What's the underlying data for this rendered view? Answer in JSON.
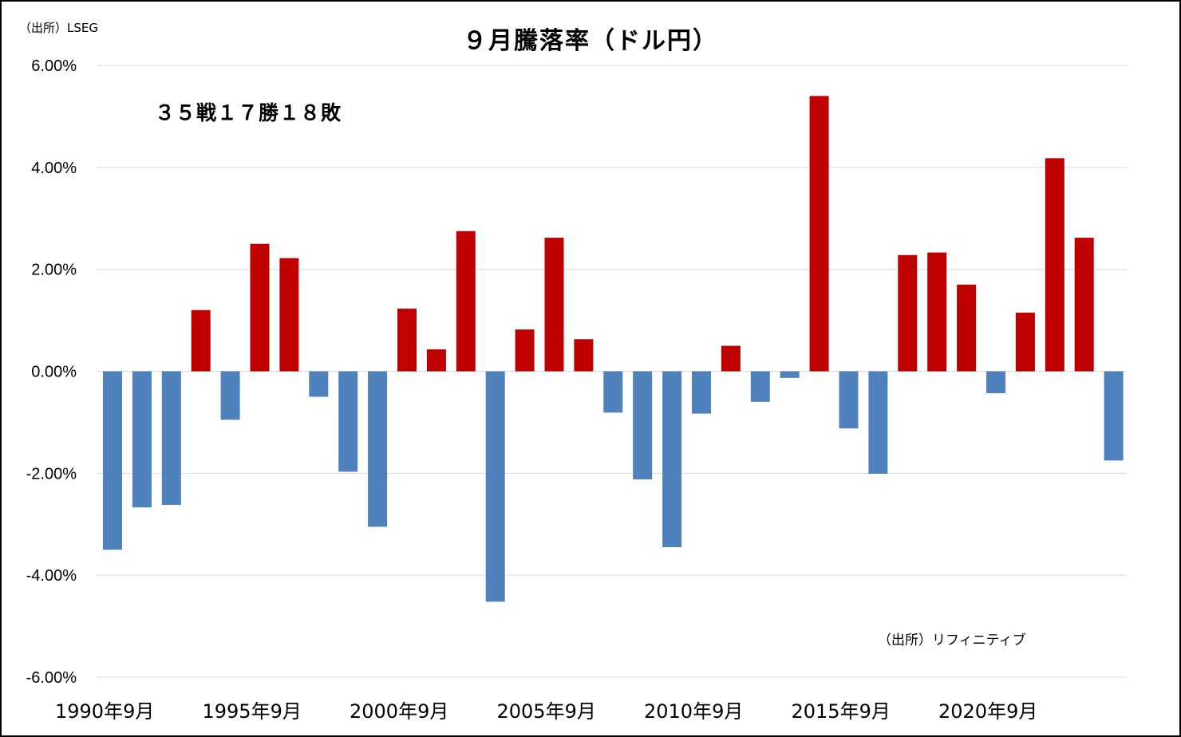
{
  "source_top": "（出所）LSEG",
  "source_bottom": "（出所）リフィニティブ",
  "record_text": "３５戦１７勝１８敗",
  "colors": {
    "positive": "#c00000",
    "negative": "#4f81bd",
    "grid": "#d9d9d9",
    "text": "#000000"
  },
  "chart_data": {
    "type": "bar",
    "title": "９月騰落率（ドル円）",
    "xlabel": "",
    "ylabel": "",
    "ylim": [
      -0.06,
      0.06
    ],
    "yticks": [
      0.06,
      0.04,
      0.02,
      0.0,
      -0.02,
      -0.04,
      -0.06
    ],
    "ytick_labels": [
      "6.00%",
      "4.00%",
      "2.00%",
      "0.00%",
      "-2.00%",
      "-4.00%",
      "-6.00%"
    ],
    "grid": true,
    "categories": [
      "1990年9月",
      "1991年9月",
      "1992年9月",
      "1993年9月",
      "1994年9月",
      "1995年9月",
      "1996年9月",
      "1997年9月",
      "1998年9月",
      "1999年9月",
      "2000年9月",
      "2001年9月",
      "2002年9月",
      "2003年9月",
      "2004年9月",
      "2005年9月",
      "2006年9月",
      "2007年9月",
      "2008年9月",
      "2009年9月",
      "2010年9月",
      "2011年9月",
      "2012年9月",
      "2013年9月",
      "2014年9月",
      "2015年9月",
      "2016年9月",
      "2017年9月",
      "2018年9月",
      "2019年9月",
      "2020年9月",
      "2021年9月",
      "2022年9月",
      "2023年9月",
      "2024年9月"
    ],
    "xtick_labels": [
      {
        "index": 0,
        "label": "1990年9月"
      },
      {
        "index": 5,
        "label": "1995年9月"
      },
      {
        "index": 10,
        "label": "2000年9月"
      },
      {
        "index": 15,
        "label": "2005年9月"
      },
      {
        "index": 20,
        "label": "2010年9月"
      },
      {
        "index": 25,
        "label": "2015年9月"
      },
      {
        "index": 30,
        "label": "2020年9月"
      }
    ],
    "values": [
      -0.035,
      -0.0267,
      -0.0262,
      0.012,
      -0.0095,
      0.025,
      0.0222,
      -0.005,
      -0.0197,
      -0.0305,
      0.0123,
      0.0043,
      0.0275,
      -0.0452,
      0.0082,
      0.0262,
      0.0063,
      -0.0081,
      -0.0212,
      -0.0345,
      -0.0083,
      0.005,
      -0.006,
      -0.0013,
      0.054,
      -0.0112,
      -0.0201,
      0.0228,
      0.0233,
      0.017,
      -0.0043,
      0.0115,
      0.0418,
      0.0262,
      -0.0175
    ]
  }
}
